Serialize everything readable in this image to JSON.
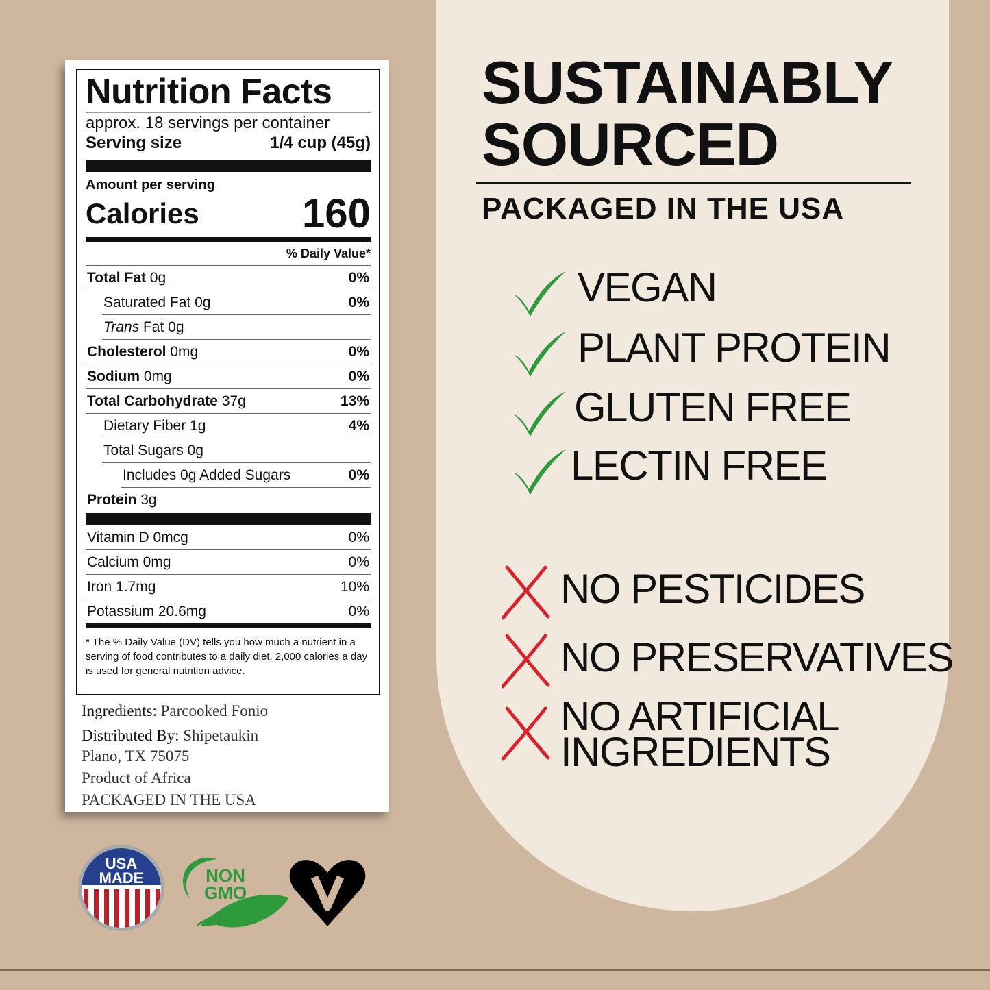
{
  "label": {
    "title": "Nutrition Facts",
    "servings": "approx. 18 servings per container",
    "serving_size_label": "Serving size",
    "serving_size_value": "1/4 cup (45g)",
    "amount_per_serving": "Amount per serving",
    "calories_label": "Calories",
    "calories_value": "160",
    "dv_header": "% Daily Value*",
    "rows": [
      {
        "name": "Total Fat",
        "amount": "0g",
        "dv": "0%"
      },
      {
        "name": "Saturated Fat",
        "amount": "0g",
        "dv": "0%"
      },
      {
        "name": "Trans",
        "name2": "Fat",
        "amount": "0g",
        "dv": ""
      },
      {
        "name": "Cholesterol",
        "amount": "0mg",
        "dv": "0%"
      },
      {
        "name": "Sodium",
        "amount": "0mg",
        "dv": "0%"
      },
      {
        "name": "Total Carbohydrate",
        "amount": "37g",
        "dv": "13%"
      },
      {
        "name": "Dietary Fiber",
        "amount": "1g",
        "dv": "4%"
      },
      {
        "name": "Total Sugars",
        "amount": "0g",
        "dv": ""
      },
      {
        "name": "Includes 0g Added Sugars",
        "amount": "",
        "dv": "0%"
      },
      {
        "name": "Protein",
        "amount": "3g",
        "dv": ""
      }
    ],
    "vitamins": [
      {
        "text": "Vitamin D 0mcg",
        "dv": "0%"
      },
      {
        "text": "Calcium 0mg",
        "dv": "0%"
      },
      {
        "text": "Iron 1.7mg",
        "dv": "10%"
      },
      {
        "text": "Potassium 20.6mg",
        "dv": "0%"
      }
    ],
    "footnote": "* The % Daily Value (DV) tells you how much a nutrient in a serving of food contributes to a daily diet. 2,000 calories a day is used for general nutrition advice."
  },
  "info": {
    "ingredients_label": "Ingredients:",
    "ingredients": "Parcooked Fonio",
    "distributed_label": "Distributed By:",
    "distributor": "Shipetaukin",
    "address": "Plano, TX 75075",
    "origin": "Product of Africa",
    "packaged": "PACKAGED IN THE USA"
  },
  "headline": {
    "line1": "SUSTAINABLY",
    "line2": "SOURCED",
    "subtitle": "PACKAGED IN THE USA"
  },
  "positives": [
    "VEGAN",
    "PLANT PROTEIN",
    "GLUTEN FREE",
    "LECTIN FREE"
  ],
  "negatives": [
    "NO PESTICIDES",
    "NO PRESERVATIVES",
    "NO ARTIFICIAL",
    "INGREDIENTS"
  ],
  "badges": {
    "usa": [
      "USA",
      "MADE"
    ],
    "nongmo": [
      "NON",
      "GMO"
    ],
    "vegan": "vegan-heart-icon"
  },
  "colors": {
    "background": "#cfb69f",
    "panel": "#f1e9de",
    "check": "#2e9a3c",
    "cross": "#d8232a",
    "nongmo": "#2e9a3c",
    "usa_blue": "#25408f",
    "usa_red": "#b5242c"
  }
}
